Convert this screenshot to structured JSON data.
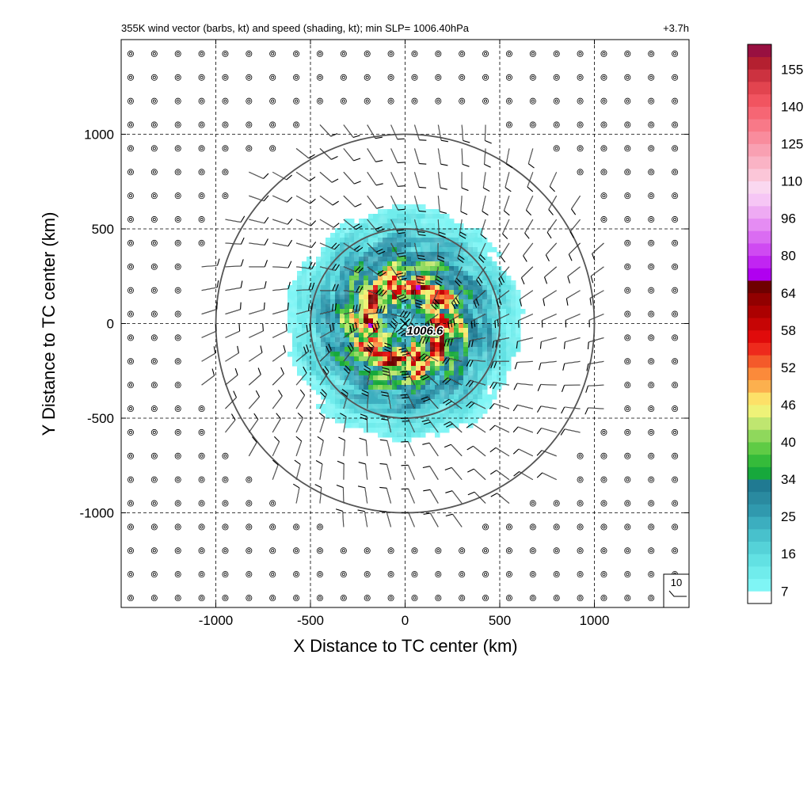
{
  "chart_data": {
    "type": "heatmap",
    "title": "355K wind vector (barbs, kt) and speed (shading, kt); min SLP= 1006.40hPa",
    "time_label": "+3.7h",
    "xlabel": "X Distance to TC center (km)",
    "ylabel": "Y Distance to TC center (km)",
    "xlim": [
      -1500,
      1500
    ],
    "ylim": [
      -1500,
      1500
    ],
    "x_ticks": [
      -1000,
      -500,
      0,
      500,
      1000
    ],
    "y_ticks": [
      -1000,
      -500,
      0,
      500,
      1000
    ],
    "x_tick_labels": [
      "-1000",
      "-500",
      "0",
      "500",
      "1000"
    ],
    "y_tick_labels": [
      "-1000",
      "-500",
      "0",
      "500",
      "1000"
    ],
    "grid": "dashed",
    "range_rings_km": [
      500,
      1000
    ],
    "center": {
      "x": 0,
      "y": 0,
      "marker": "×",
      "label": "1006.6"
    },
    "reference_barb": {
      "label": "10",
      "value_kt": 10
    },
    "colorbar": {
      "tick_labels": [
        "7",
        "16",
        "25",
        "34",
        "40",
        "46",
        "52",
        "58",
        "64",
        "80",
        "96",
        "110",
        "125",
        "140",
        "155"
      ],
      "tick_values": [
        7,
        16,
        25,
        34,
        40,
        46,
        52,
        58,
        64,
        80,
        96,
        110,
        125,
        140,
        155
      ],
      "colors": [
        "#ffffff",
        "#7ff5f5",
        "#70ecec",
        "#62e1e3",
        "#55d2d8",
        "#48c1cc",
        "#3caebf",
        "#3099ae",
        "#2a8aa0",
        "#207a92",
        "#17a83c",
        "#35bb3a",
        "#5fcb45",
        "#8fd85c",
        "#bfe670",
        "#eef278",
        "#fde068",
        "#fcb04e",
        "#fb8a3a",
        "#f45a2a",
        "#ee2a1c",
        "#e00b0b",
        "#c60505",
        "#ac0101",
        "#920000",
        "#6e0000",
        "#b000f0",
        "#c125f2",
        "#cf4af2",
        "#da6cf2",
        "#e58cf3",
        "#eeaaf3",
        "#f6c6f5",
        "#fad8f0",
        "#fbc6d8",
        "#fab3c5",
        "#f9a0b2",
        "#f98c9d",
        "#f87988",
        "#f66674",
        "#f15460",
        "#e2444f",
        "#cc3240",
        "#b42030",
        "#981040"
      ]
    },
    "speed_field_kt": {
      "r_km": [
        0,
        100,
        200,
        300,
        400,
        500,
        600,
        700
      ],
      "max_kt": [
        12,
        30,
        55,
        36,
        26,
        16,
        9,
        0
      ]
    }
  }
}
